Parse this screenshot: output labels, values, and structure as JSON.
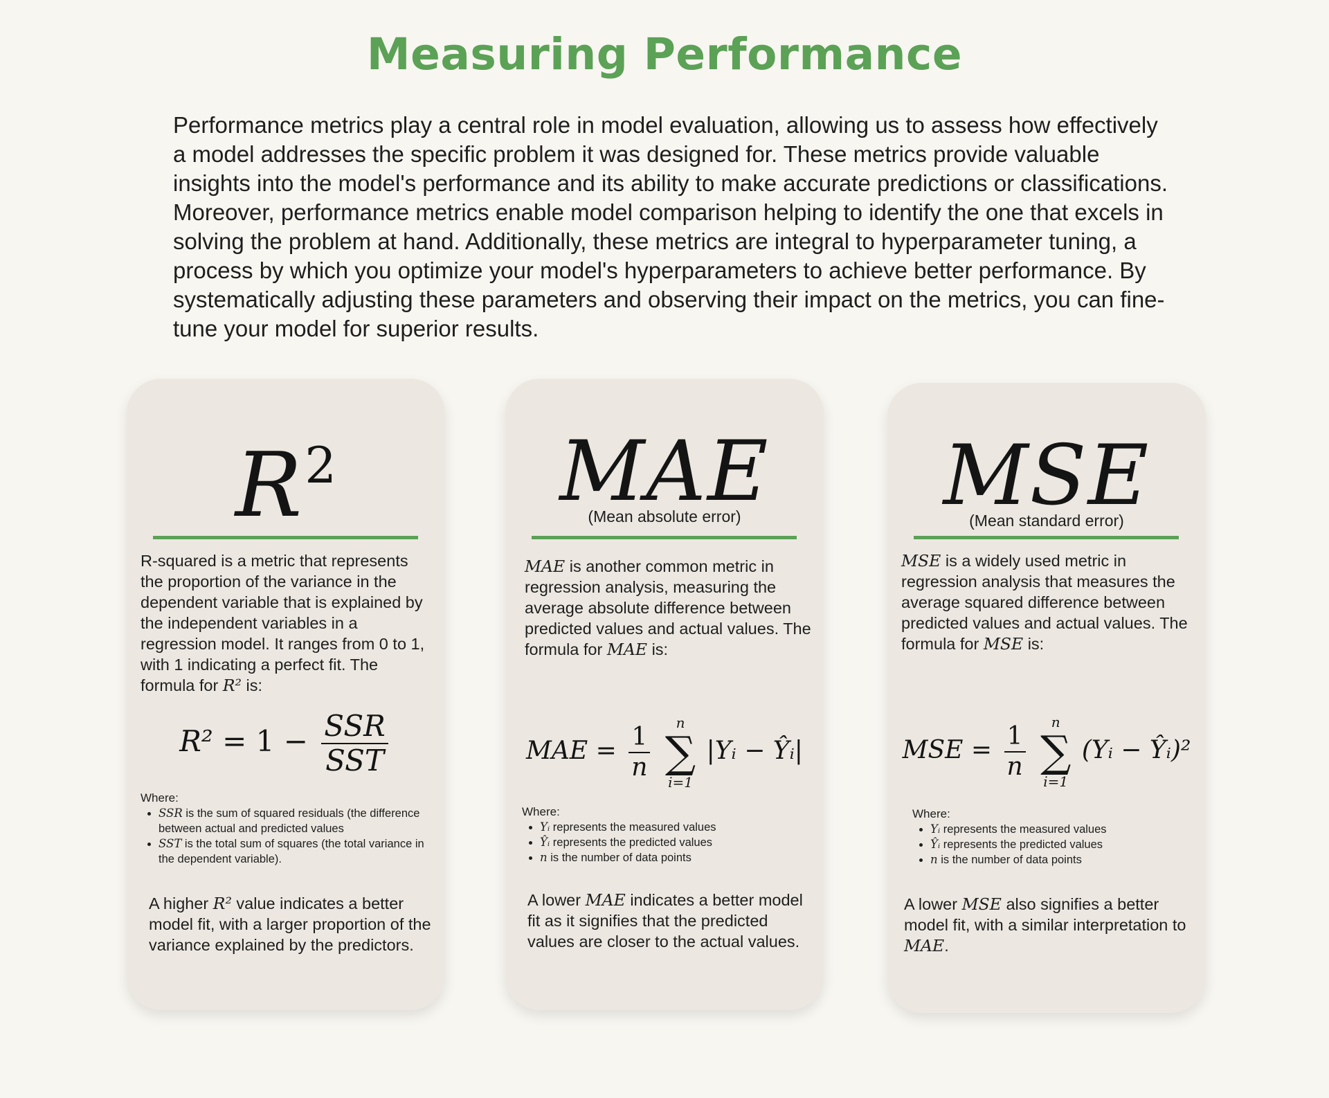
{
  "title": "Measuring Performance",
  "intro": "Performance metrics play a central role in model evaluation, allowing us to assess how effectively a model addresses the specific problem it was designed for. These metrics provide valuable insights into the model's performance and its ability to make accurate predictions or classifications. Moreover, performance metrics enable model comparison helping to identify the one that excels in solving the problem at hand. Additionally, these metrics are integral to hyperparameter tuning, a process by which you optimize your model's hyperparameters to achieve better performance. By systematically adjusting these parameters and observing their impact on the metrics, you can fine-tune your model for superior results.",
  "colors": {
    "accent": "#5ba156",
    "card_bg": "#ece8e1",
    "page_bg": "#f8f6f1"
  },
  "cards": [
    {
      "symbol": "R",
      "symbol_sup": "2",
      "subtitle": "",
      "desc_text": "R-squared is a metric that represents the proportion of the variance in the dependent variable that is explained by the independent variables in a regression model. It ranges from 0 to 1, with 1 indicating a perfect fit. The formula for ",
      "desc_math": "R²",
      "desc_tail": " is:",
      "formula": {
        "lhs": "R²",
        "eq": "= 1 −",
        "num": "SSR",
        "den": "SST"
      },
      "where_label": "Where:",
      "where_items": [
        {
          "math": "SSR",
          "text": " is the sum of squared residuals (the difference between actual and predicted values"
        },
        {
          "math": "SST",
          "text": " is the total sum of squares (the total variance in the dependent variable)."
        }
      ],
      "concl_pre": "A higher ",
      "concl_math": "R²",
      "concl_post": " value indicates a better model fit, with a larger proportion of the variance explained by the predictors."
    },
    {
      "symbol": "MAE",
      "subtitle": "(Mean absolute error)",
      "desc_math": "MAE",
      "desc_text": " is another common metric in regression analysis, measuring the average absolute difference between predicted values and actual values. The formula for ",
      "desc_math2": "MAE",
      "desc_tail": " is:",
      "formula": {
        "lhs": "MAE =",
        "num": "1",
        "den": "n",
        "sum_top": "n",
        "sum_bottom": "i=1",
        "body": "|Yᵢ − Ŷᵢ|"
      },
      "where_label": "Where:",
      "where_items": [
        {
          "math": "Yᵢ",
          "text": " represents the measured values"
        },
        {
          "math": "Ŷᵢ",
          "text": " represents the predicted values"
        },
        {
          "math": "n",
          "text": " is the number of data points"
        }
      ],
      "concl_pre": "A lower ",
      "concl_math": "MAE",
      "concl_post": " indicates a better model fit as it signifies that the predicted values are closer to the actual values."
    },
    {
      "symbol": "MSE",
      "subtitle": "(Mean standard error)",
      "desc_math": "MSE",
      "desc_text": " is a widely used metric in regression analysis that measures the average squared difference between predicted values and actual values. The formula for ",
      "desc_math2": "MSE",
      "desc_tail": " is:",
      "formula": {
        "lhs": "MSE =",
        "num": "1",
        "den": "n",
        "sum_top": "n",
        "sum_bottom": "i=1",
        "body": "(Yᵢ − Ŷᵢ)²"
      },
      "where_label": "Where:",
      "where_items": [
        {
          "math": "Yᵢ",
          "text": " represents the measured values"
        },
        {
          "math": "Ŷᵢ",
          "text": " represents the predicted values"
        },
        {
          "math": "n",
          "text": " is the number of data points"
        }
      ],
      "concl_pre": "A lower ",
      "concl_math": "MSE",
      "concl_post": " also signifies a better model fit, with a similar interpretation to ",
      "concl_math2": "MAE",
      "concl_end": "."
    }
  ]
}
